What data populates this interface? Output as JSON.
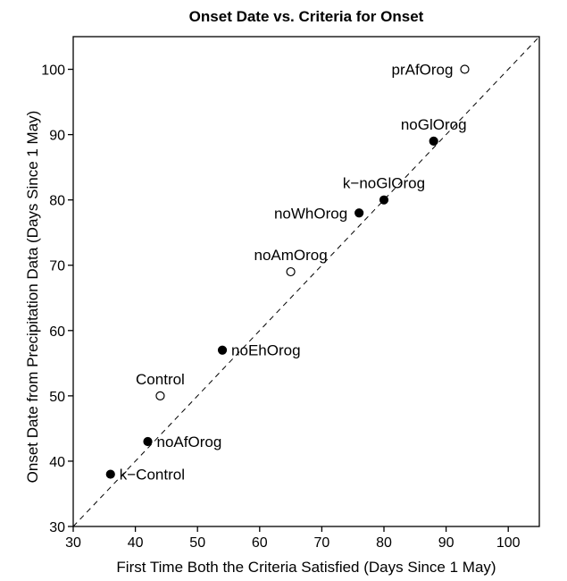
{
  "chart_data": {
    "type": "scatter",
    "title": "Onset Date vs. Criteria for Onset",
    "xlabel": "First Time Both the Criteria Satisfied (Days Since 1 May)",
    "ylabel": "Onset Date from Precipitation Data (Days Since 1 May)",
    "xlim": [
      30,
      105
    ],
    "ylim": [
      30,
      105
    ],
    "xticks": [
      30,
      40,
      50,
      60,
      70,
      80,
      90,
      100
    ],
    "yticks": [
      30,
      40,
      50,
      60,
      70,
      80,
      90,
      100
    ],
    "grid": false,
    "reference_line": {
      "x": [
        30,
        105
      ],
      "y": [
        30,
        105
      ],
      "style": "dashed"
    },
    "points": [
      {
        "label": "k−Control",
        "x": 36,
        "y": 38,
        "filled": true,
        "label_pos": "right"
      },
      {
        "label": "noAfOrog",
        "x": 42,
        "y": 43,
        "filled": true,
        "label_pos": "right"
      },
      {
        "label": "Control",
        "x": 44,
        "y": 50,
        "filled": false,
        "label_pos": "above"
      },
      {
        "label": "noEhOrog",
        "x": 54,
        "y": 57,
        "filled": true,
        "label_pos": "right"
      },
      {
        "label": "noAmOrog",
        "x": 65,
        "y": 69,
        "filled": false,
        "label_pos": "above"
      },
      {
        "label": "noWhOrog",
        "x": 76,
        "y": 78,
        "filled": true,
        "label_pos": "left"
      },
      {
        "label": "k−noGlOrog",
        "x": 80,
        "y": 80,
        "filled": true,
        "label_pos": "above"
      },
      {
        "label": "noGlOrog",
        "x": 88,
        "y": 89,
        "filled": true,
        "label_pos": "above"
      },
      {
        "label": "prAfOrog",
        "x": 93,
        "y": 100,
        "filled": false,
        "label_pos": "left"
      }
    ]
  }
}
